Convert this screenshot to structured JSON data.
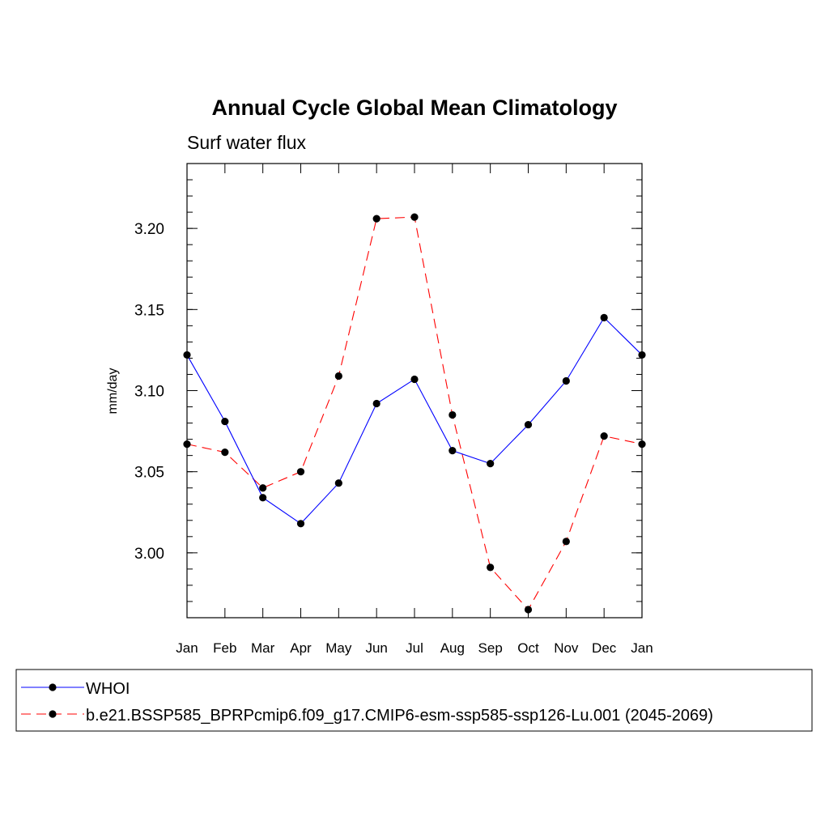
{
  "chart_data": {
    "type": "line",
    "title": "Annual Cycle Global Mean Climatology",
    "subtitle": "Surf water flux",
    "xlabel": "",
    "ylabel": "mm/day",
    "categories": [
      "Jan",
      "Feb",
      "Mar",
      "Apr",
      "May",
      "Jun",
      "Jul",
      "Aug",
      "Sep",
      "Oct",
      "Nov",
      "Dec",
      "Jan"
    ],
    "ylim": [
      2.96,
      3.24
    ],
    "yticks": [
      3.0,
      3.05,
      3.1,
      3.15,
      3.2
    ],
    "ytick_labels": [
      "3.00",
      "3.05",
      "3.10",
      "3.15",
      "3.20"
    ],
    "minor_tick_step": 0.01,
    "grid": false,
    "legend_position": "bottom",
    "series": [
      {
        "name": "WHOI",
        "color": "#0000ff",
        "line_style": "solid",
        "values": [
          3.122,
          3.081,
          3.034,
          3.018,
          3.043,
          3.092,
          3.107,
          3.063,
          3.055,
          3.079,
          3.106,
          3.145,
          3.122
        ]
      },
      {
        "name": "b.e21.BSSP585_BPRPcmip6.f09_g17.CMIP6-esm-ssp585-ssp126-Lu.001 (2045-2069)",
        "color": "#ff0000",
        "line_style": "dashed",
        "values": [
          3.067,
          3.062,
          3.04,
          3.05,
          3.109,
          3.206,
          3.207,
          3.085,
          2.991,
          2.965,
          3.007,
          3.072,
          3.067
        ]
      }
    ]
  }
}
